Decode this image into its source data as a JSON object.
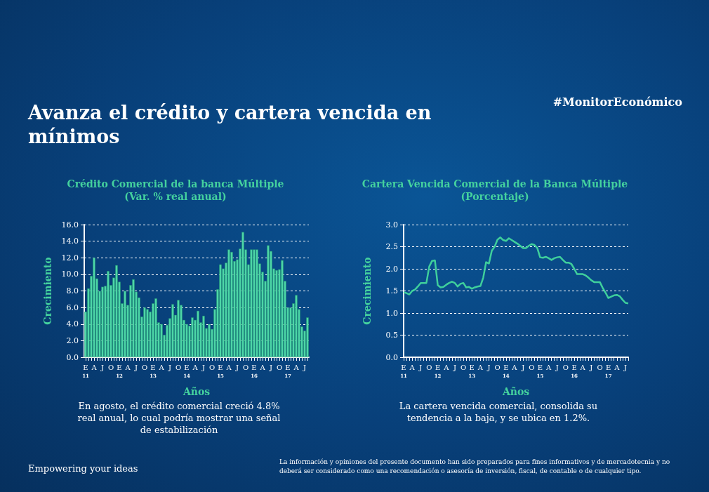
{
  "chart_data": [
    {
      "type": "other",
      "title": "Avanza el crédito y cartera vencida en mínimos",
      "annotations": [
        "#MonitorEconómico",
        "Empowering your ideas",
        "La información y opiniones del presente documento han sido preparados para fines informativos y de mercadotecnia y no deberá ser considerado como una recomendación o asesoría de inversión, fiscal, de contable o de cualquier tipo."
      ]
    },
    {
      "type": "bar",
      "title": "Crédito Comercial de la banca Múltiple",
      "subtitle": "(Var. % real anual)",
      "xlabel": "Años",
      "ylabel": "Crecimiento",
      "color": "#4dd6a7",
      "grid": "y",
      "categories": [
        "E\n11",
        null,
        null,
        "A",
        null,
        null,
        "J",
        null,
        null,
        "O",
        null,
        null,
        "E\n12",
        null,
        null,
        "A",
        null,
        null,
        "J",
        null,
        null,
        "O",
        null,
        null,
        "E\n13",
        null,
        null,
        "A",
        null,
        null,
        "J",
        null,
        null,
        "O",
        null,
        null,
        "E\n14",
        null,
        null,
        "A",
        null,
        null,
        "J",
        null,
        null,
        "O",
        null,
        null,
        "E\n15",
        null,
        null,
        "A",
        null,
        null,
        "J",
        null,
        null,
        "O",
        null,
        null,
        "E\n16",
        null,
        null,
        "A",
        null,
        null,
        "J",
        null,
        null,
        "O",
        null,
        null,
        "E\n17",
        null,
        null,
        "A",
        null,
        null,
        "J",
        null
      ],
      "values": [
        5.5,
        8.3,
        9.8,
        12.0,
        9.5,
        8.0,
        8.5,
        8.6,
        10.4,
        8.7,
        9.6,
        11.1,
        9.1,
        6.5,
        8.0,
        6.3,
        8.7,
        9.4,
        7.9,
        7.2,
        4.9,
        6.0,
        5.8,
        5.5,
        6.5,
        7.1,
        4.2,
        4.0,
        2.7,
        3.9,
        4.7,
        6.4,
        5.1,
        6.9,
        6.3,
        4.5,
        4.0,
        3.8,
        4.8,
        4.5,
        5.6,
        4.2,
        5.0,
        3.5,
        4.0,
        3.4,
        5.8,
        8.2,
        11.2,
        10.7,
        11.4,
        13.0,
        12.7,
        11.6,
        11.8,
        13.1,
        15.1,
        13.0,
        11.2,
        13.0,
        13.0,
        13.0,
        11.3,
        10.3,
        9.2,
        13.5,
        12.8,
        10.7,
        10.5,
        10.6,
        11.7,
        9.2,
        6.0,
        6.0,
        6.5,
        7.5,
        5.8,
        3.7,
        3.2,
        4.8
      ],
      "ylim": [
        0,
        16
      ],
      "yticks": [
        {
          "value": 0,
          "label": "0.0"
        },
        {
          "value": 2,
          "label": "2.0"
        },
        {
          "value": 4,
          "label": "4.0"
        },
        {
          "value": 6,
          "label": "6.0"
        },
        {
          "value": 8,
          "label": "8.0"
        },
        {
          "value": 10,
          "label": "10.0"
        },
        {
          "value": 12,
          "label": "12.0"
        },
        {
          "value": 14,
          "label": "14.0"
        },
        {
          "value": 16,
          "label": "16.0"
        }
      ],
      "annotations": [
        "En agosto, el crédito comercial creció 4.8% real anual, lo cual podría mostrar una señal de estabilización"
      ]
    },
    {
      "type": "line",
      "title": "Cartera Vencida Comercial de la Banca Múltiple",
      "subtitle": "(Porcentaje)",
      "xlabel": "Años",
      "ylabel": "Crecimiento",
      "color": "#3fcf9c",
      "grid": "y",
      "marker": "none",
      "categories": [
        "E\n11",
        null,
        null,
        "A",
        null,
        null,
        "J",
        null,
        null,
        "O",
        null,
        null,
        "E\n12",
        null,
        null,
        "A",
        null,
        null,
        "J",
        null,
        null,
        "O",
        null,
        null,
        "E\n13",
        null,
        null,
        "A",
        null,
        null,
        "J",
        null,
        null,
        "O",
        null,
        null,
        "E\n14",
        null,
        null,
        "A",
        null,
        null,
        "J",
        null,
        null,
        "O",
        null,
        null,
        "E\n15",
        null,
        null,
        "A",
        null,
        null,
        "J",
        null,
        null,
        "O",
        null,
        null,
        "E\n16",
        null,
        null,
        "A",
        null,
        null,
        "J",
        null,
        null,
        "O",
        null,
        null,
        "E\n17",
        null,
        null,
        "A",
        null,
        null,
        "J",
        null
      ],
      "values": [
        1.47,
        1.45,
        1.42,
        1.5,
        1.53,
        1.6,
        1.68,
        1.68,
        1.68,
        2.05,
        2.18,
        2.19,
        1.63,
        1.58,
        1.59,
        1.64,
        1.68,
        1.71,
        1.68,
        1.6,
        1.66,
        1.68,
        1.58,
        1.59,
        1.55,
        1.58,
        1.6,
        1.61,
        1.8,
        2.15,
        2.12,
        2.41,
        2.5,
        2.66,
        2.71,
        2.65,
        2.63,
        2.69,
        2.65,
        2.61,
        2.57,
        2.52,
        2.47,
        2.47,
        2.52,
        2.56,
        2.54,
        2.47,
        2.26,
        2.25,
        2.27,
        2.24,
        2.2,
        2.24,
        2.26,
        2.27,
        2.2,
        2.14,
        2.14,
        2.11,
        2.0,
        1.88,
        1.88,
        1.88,
        1.85,
        1.8,
        1.74,
        1.7,
        1.7,
        1.7,
        1.57,
        1.46,
        1.34,
        1.37,
        1.4,
        1.41,
        1.38,
        1.3,
        1.23,
        1.22
      ],
      "ylim": [
        0,
        3
      ],
      "yticks": [
        {
          "value": 0,
          "label": "0.0"
        },
        {
          "value": 0.5,
          "label": "0.5"
        },
        {
          "value": 1,
          "label": "1.0"
        },
        {
          "value": 1.5,
          "label": "1.5"
        },
        {
          "value": 2,
          "label": "2.0"
        },
        {
          "value": 2.5,
          "label": "2.5"
        },
        {
          "value": 3,
          "label": "3.0"
        }
      ],
      "annotations": [
        "La cartera vencida comercial, consolida su tendencia a la baja, y se ubica en 1.2%."
      ]
    }
  ]
}
